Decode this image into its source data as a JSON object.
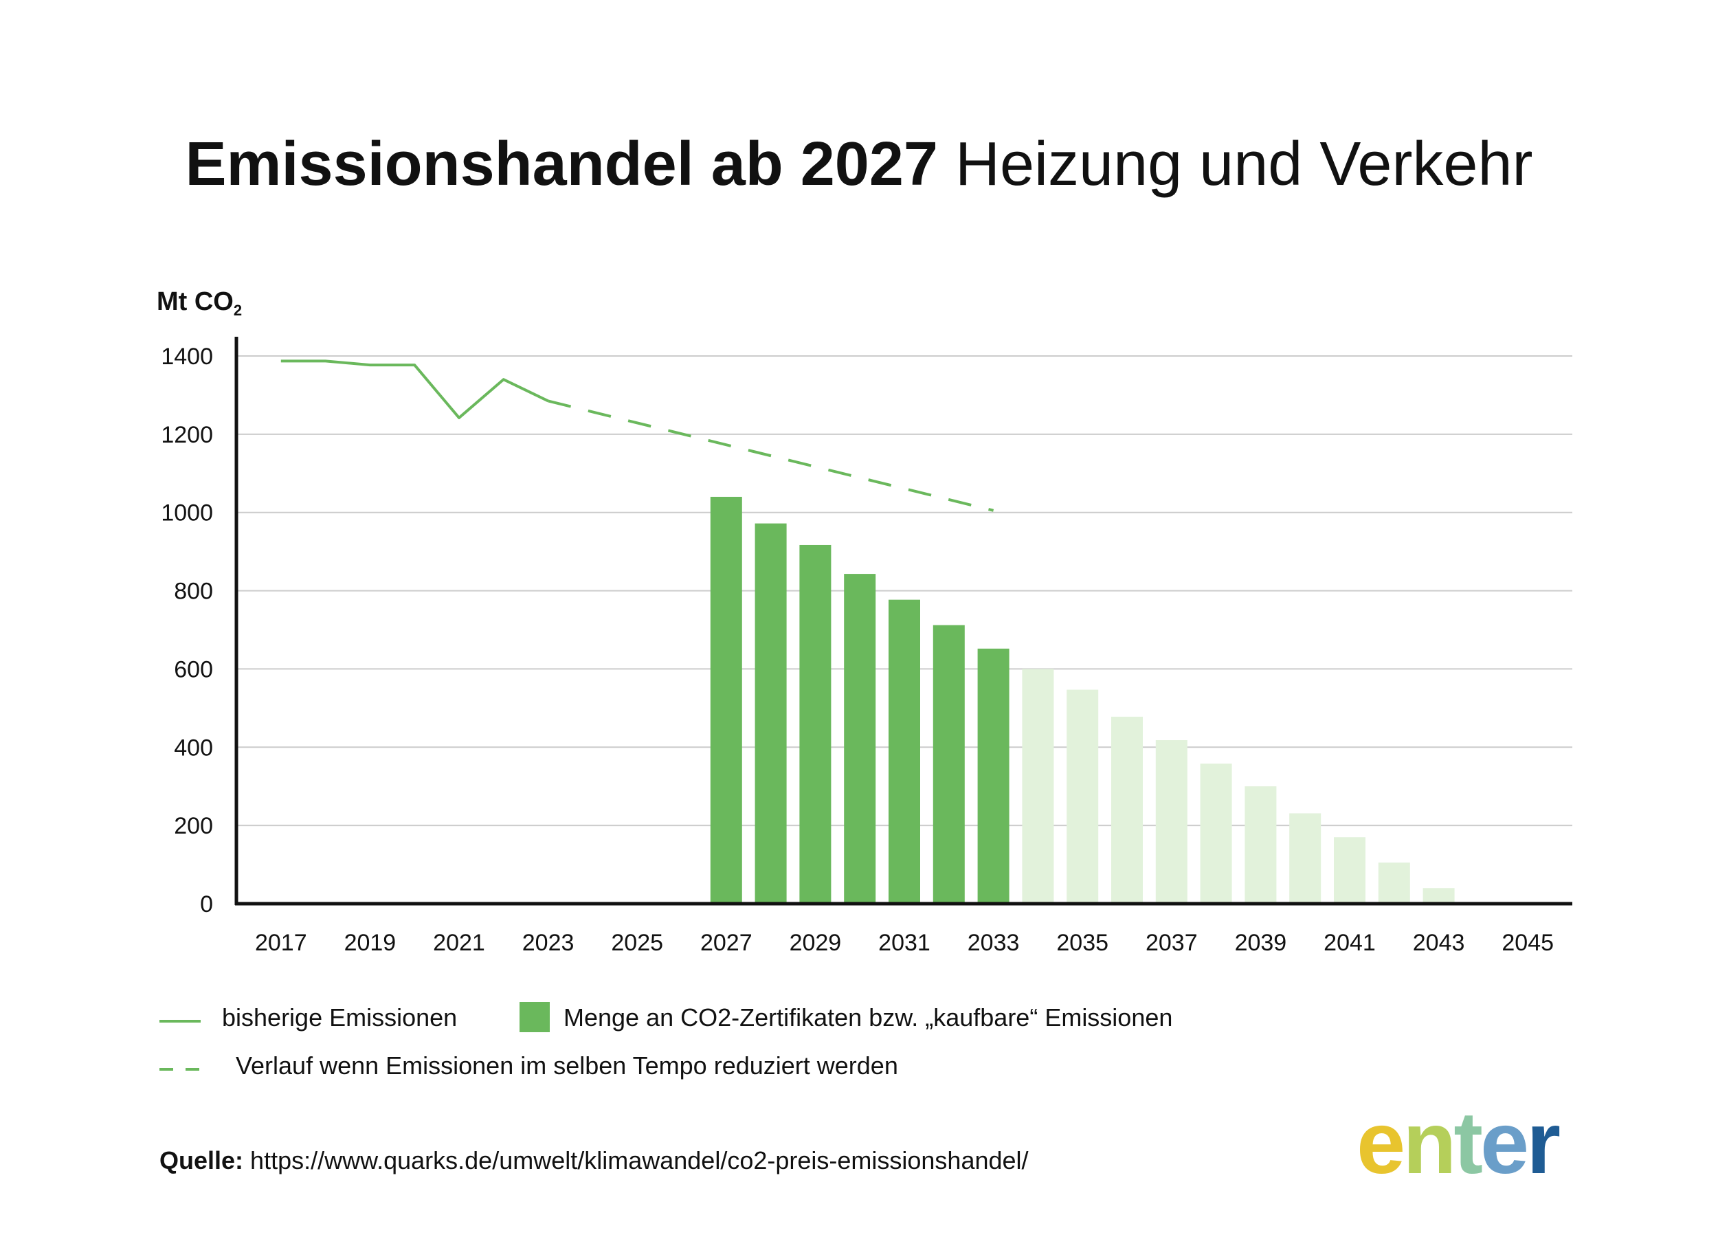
{
  "title": {
    "bold": "Emissionshandel ab 2027",
    "light": "Heizung und Verkehr"
  },
  "unit": {
    "main": "Mt CO",
    "sub": "2"
  },
  "legend": {
    "historic": "bisherige Emissionen",
    "certificates": "Menge an CO2-Zertifikaten bzw. „kaufbare“ Emissionen",
    "trend": "Verlauf wenn Emissionen im selben Tempo reduziert werden"
  },
  "source": {
    "label": "Quelle:",
    "url": "https://www.quarks.de/umwelt/klimawandel/co2-preis-emissionshandel/"
  },
  "logo": {
    "letters": [
      "e",
      "n",
      "t",
      "e",
      "r"
    ],
    "colors": [
      "#e8c42e",
      "#b5cf5a",
      "#8cc7a3",
      "#6a9ec9",
      "#1f5c94"
    ]
  },
  "colors": {
    "line": "#6ab85c",
    "bar": "#6ab85c",
    "bar_light": "#e2f2db",
    "grid": "#cccccc",
    "axis": "#111111"
  },
  "chart_data": {
    "type": "bar",
    "ylabel": "Mt CO2",
    "ylim": [
      0,
      1400
    ],
    "yticks": [
      0,
      200,
      400,
      600,
      800,
      1000,
      1200,
      1400
    ],
    "xlim": [
      2016,
      2046
    ],
    "xticks": [
      "2017",
      "2019",
      "2021",
      "2023",
      "2025",
      "2027",
      "2029",
      "2031",
      "2033",
      "2035",
      "2037",
      "2039",
      "2041",
      "2043",
      "2045"
    ],
    "grid": true,
    "series": [
      {
        "name": "bisherige Emissionen",
        "kind": "line",
        "x": [
          2017,
          2018,
          2019,
          2020,
          2021,
          2022,
          2023
        ],
        "values": [
          1387,
          1387,
          1377,
          1377,
          1242,
          1340,
          1285
        ]
      },
      {
        "name": "Verlauf wenn Emissionen im selben Tempo reduziert werden",
        "kind": "dashed-line",
        "x": [
          2023,
          2033
        ],
        "values": [
          1285,
          1005
        ]
      },
      {
        "name": "Menge an CO2-Zertifikaten bzw. „kaufbare“ Emissionen",
        "kind": "bar",
        "x": [
          2027,
          2028,
          2029,
          2030,
          2031,
          2032,
          2033
        ],
        "values": [
          1040,
          972,
          917,
          843,
          777,
          712,
          652
        ]
      },
      {
        "kind": "bar-light",
        "x": [
          2034,
          2035,
          2036,
          2037,
          2038,
          2039,
          2040,
          2041,
          2042,
          2043
        ],
        "values": [
          600,
          547,
          478,
          418,
          358,
          300,
          231,
          170,
          105,
          40
        ]
      }
    ]
  }
}
